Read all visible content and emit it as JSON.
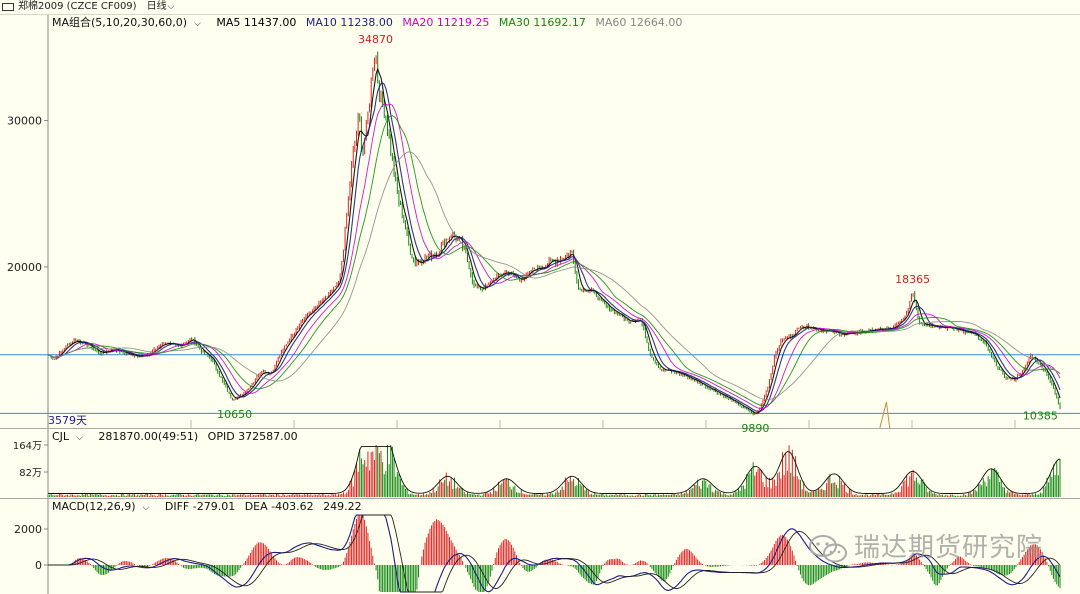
{
  "header": {
    "symbol": "郑棉2009 (CZCE CF009)",
    "period": "日线"
  },
  "main_panel": {
    "ma_group_label": "MA组合(5,10,20,30,60,0)",
    "ma_values": [
      {
        "label": "MA5 11437.00",
        "color": "#000000"
      },
      {
        "label": "MA10 11238.00",
        "color": "#1c1c8c"
      },
      {
        "label": "MA20 11219.25",
        "color": "#cc00cc"
      },
      {
        "label": "MA30 11692.17",
        "color": "#118811"
      },
      {
        "label": "MA60 12664.00",
        "color": "#888888"
      }
    ],
    "y_ticks": [
      "30000",
      "20000"
    ],
    "annotations": {
      "high": "34870",
      "local_high": "18365",
      "low1": "10650",
      "low2": "9890",
      "last_low": "10385",
      "days": "3579天"
    }
  },
  "volume_panel": {
    "label": "CJL",
    "values": "281870.00(49:51)",
    "opid": "OPID 372587.00",
    "y_ticks": [
      "164万",
      "82万"
    ]
  },
  "macd_panel": {
    "label": "MACD(12,26,9)",
    "diff": "DIFF -279.01",
    "dea": "DEA -403.62",
    "macd": "249.22",
    "y_ticks": [
      "2000",
      "0"
    ]
  },
  "watermark": "瑞达期货研究院",
  "colors": {
    "background": "#fffff0",
    "up": "#dd2222",
    "down": "#118811",
    "hline": "#3388dd",
    "axis": "#888888"
  },
  "chart_data": {
    "type": "line",
    "title": "郑棉2009 (CZCE CF009)",
    "ylim": [
      9000,
      35500
    ],
    "x_axis": "trading days (3579)",
    "price_path": [
      [
        0,
        14000
      ],
      [
        2,
        13700
      ],
      [
        5,
        14500
      ],
      [
        8,
        15000
      ],
      [
        12,
        14700
      ],
      [
        16,
        14100
      ],
      [
        20,
        14400
      ],
      [
        25,
        14000
      ],
      [
        30,
        13900
      ],
      [
        35,
        14800
      ],
      [
        40,
        14600
      ],
      [
        44,
        15100
      ],
      [
        47,
        14200
      ],
      [
        50,
        13700
      ],
      [
        53,
        12300
      ],
      [
        56,
        11000
      ],
      [
        59,
        11200
      ],
      [
        62,
        11900
      ],
      [
        65,
        12900
      ],
      [
        68,
        12700
      ],
      [
        72,
        14500
      ],
      [
        75,
        15500
      ],
      [
        78,
        16500
      ],
      [
        82,
        17300
      ],
      [
        86,
        18200
      ],
      [
        89,
        19000
      ],
      [
        91,
        23000
      ],
      [
        93,
        27500
      ],
      [
        95,
        30500
      ],
      [
        96,
        27500
      ],
      [
        98,
        31000
      ],
      [
        99,
        33500
      ],
      [
        100,
        34870
      ],
      [
        101,
        32000
      ],
      [
        103,
        30500
      ],
      [
        105,
        27500
      ],
      [
        107,
        24500
      ],
      [
        109,
        23000
      ],
      [
        110,
        21500
      ],
      [
        112,
        20300
      ],
      [
        115,
        20600
      ],
      [
        119,
        21000
      ],
      [
        123,
        22300
      ],
      [
        126,
        21700
      ],
      [
        128,
        20500
      ],
      [
        130,
        18700
      ],
      [
        133,
        18500
      ],
      [
        136,
        19200
      ],
      [
        140,
        19700
      ],
      [
        144,
        19100
      ],
      [
        148,
        19800
      ],
      [
        153,
        20300
      ],
      [
        157,
        20600
      ],
      [
        160,
        21000
      ],
      [
        162,
        18500
      ],
      [
        166,
        18400
      ],
      [
        170,
        17400
      ],
      [
        174,
        16800
      ],
      [
        177,
        16300
      ],
      [
        181,
        16400
      ],
      [
        184,
        14000
      ],
      [
        187,
        13000
      ],
      [
        192,
        12800
      ],
      [
        197,
        12300
      ],
      [
        202,
        11700
      ],
      [
        207,
        11100
      ],
      [
        213,
        10300
      ],
      [
        216,
        9890
      ],
      [
        218,
        10700
      ],
      [
        220,
        12000
      ],
      [
        222,
        14000
      ],
      [
        224,
        15000
      ],
      [
        227,
        15300
      ],
      [
        230,
        16000
      ],
      [
        236,
        15700
      ],
      [
        243,
        15400
      ],
      [
        252,
        15700
      ],
      [
        258,
        15800
      ],
      [
        262,
        16700
      ],
      [
        264,
        18365
      ],
      [
        266,
        16200
      ],
      [
        270,
        16000
      ],
      [
        276,
        15800
      ],
      [
        282,
        15500
      ],
      [
        286,
        14800
      ],
      [
        289,
        13500
      ],
      [
        292,
        12500
      ],
      [
        295,
        12300
      ],
      [
        298,
        13000
      ],
      [
        300,
        14000
      ],
      [
        303,
        13300
      ],
      [
        305,
        12700
      ],
      [
        307,
        11700
      ],
      [
        309,
        10385
      ]
    ]
  }
}
